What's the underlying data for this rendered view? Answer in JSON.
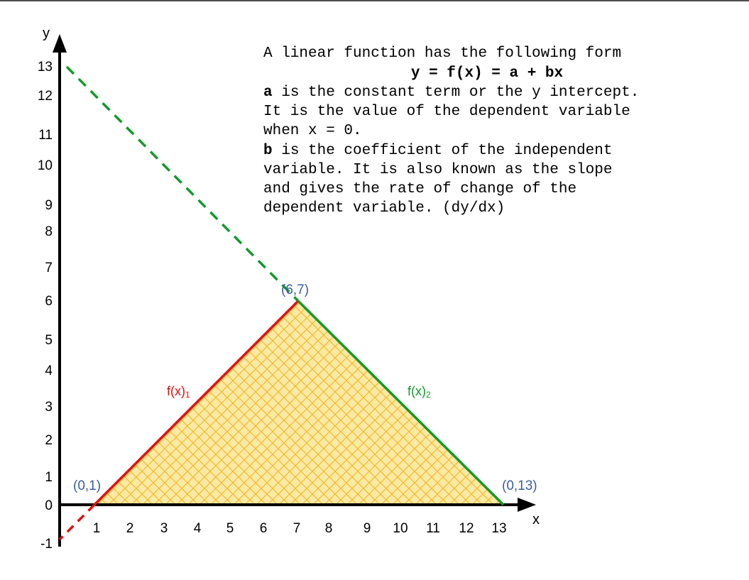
{
  "axes": {
    "x_name": "x",
    "y_name": "y",
    "x_ticks": [
      "1",
      "2",
      "3",
      "4",
      "5",
      "6",
      "7",
      "8",
      "9",
      "10",
      "11",
      "12",
      "13"
    ],
    "y_ticks": [
      "-1",
      "0",
      "1",
      "2",
      "3",
      "4",
      "5",
      "6",
      "7",
      "8",
      "9",
      "10",
      "11",
      "12",
      "13"
    ]
  },
  "points": {
    "p1": "(0,1)",
    "p2": "(6,7)",
    "p3": "(0,13)"
  },
  "functions": {
    "f1": {
      "name": "f(x)",
      "sub": "1",
      "color": "#e01010"
    },
    "f2": {
      "name": "f(x)",
      "sub": "2",
      "color": "#119a2a"
    }
  },
  "colors": {
    "fill": "#fbe9a6",
    "hatch": "#f2b81a",
    "axis": "#000000"
  },
  "description": {
    "line1": "A linear function has the following form",
    "formula": "y = f(x) = a + bx",
    "a_term": "a",
    "a_text": " is the constant term or the y intercept.",
    "line3": "It is the value of the dependent variable",
    "line4": "when x = 0.",
    "b_term": "b",
    "b_text": " is the coefficient of the independent",
    "line6": "variable. It is also known as the slope",
    "line7": "and gives the rate of change of the",
    "line8": "dependent variable. (dy/dx)"
  }
}
